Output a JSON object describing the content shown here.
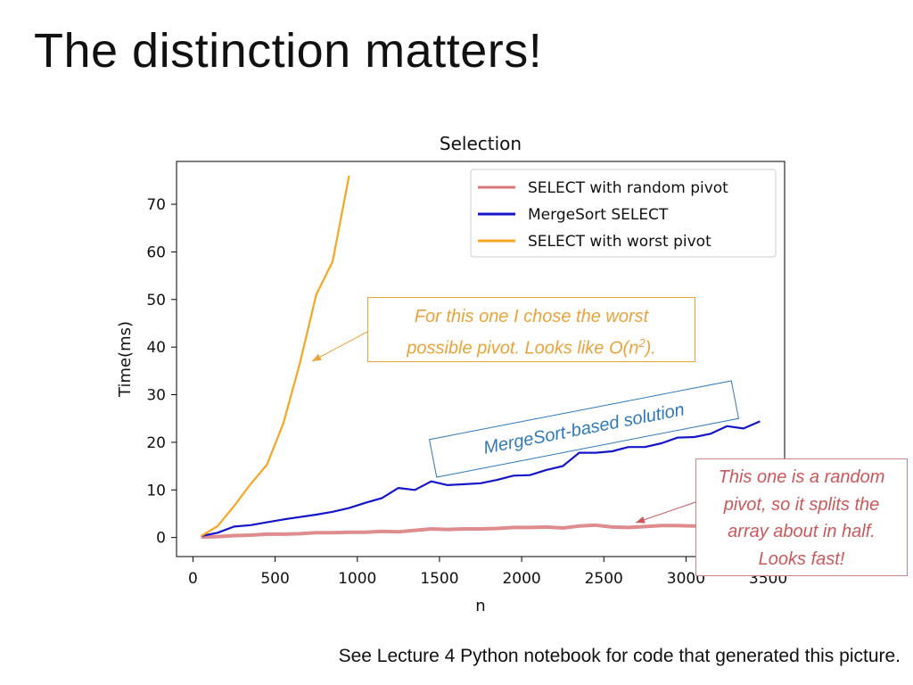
{
  "slide": {
    "title": "The distinction matters!",
    "footnote": "See Lecture 4 Python notebook for code that generated this picture."
  },
  "annotations": {
    "worst_line1": "For this one I chose the worst",
    "worst_line2_pre": "possible pivot.  Looks like O(n",
    "worst_line2_sup": "2",
    "worst_line2_post": ").",
    "merge": "MergeSort-based solution",
    "random_lines": [
      "This one is a random",
      "pivot, so it splits the",
      "array about in half.",
      "Looks fast!"
    ]
  },
  "colors": {
    "random": "#d9787a",
    "mergesort": "#1414c8",
    "worst": "#f5a623",
    "worst_note": "#e8a33b",
    "random_note": "#c9585a",
    "merge_note": "#2e78b8"
  },
  "chart_data": {
    "type": "line",
    "title": "Selection",
    "xlabel": "n",
    "ylabel": "Time(ms)",
    "xlim": [
      -100,
      3600
    ],
    "ylim": [
      -4,
      79
    ],
    "xticks": [
      0,
      500,
      1000,
      1500,
      2000,
      2500,
      3000,
      3500
    ],
    "yticks": [
      0,
      10,
      20,
      30,
      40,
      50,
      60,
      70
    ],
    "legend_position": "top-right",
    "series": [
      {
        "name": "SELECT with random pivot",
        "color": "#d9787a",
        "x": [
          50,
          150,
          250,
          350,
          450,
          550,
          650,
          750,
          850,
          950,
          1050,
          1150,
          1250,
          1350,
          1450,
          1550,
          1650,
          1750,
          1850,
          1950,
          2050,
          2150,
          2250,
          2350,
          2450,
          2550,
          2650,
          2750,
          2850,
          2950,
          3050,
          3150,
          3250,
          3350,
          3450
        ],
        "y": [
          0.1,
          0.2,
          0.4,
          0.5,
          0.7,
          0.7,
          0.8,
          1.0,
          1.0,
          1.1,
          1.1,
          1.3,
          1.2,
          1.5,
          1.8,
          1.7,
          1.8,
          1.8,
          1.9,
          2.1,
          2.1,
          2.2,
          2.0,
          2.4,
          2.6,
          2.2,
          2.1,
          2.3,
          2.5,
          2.5,
          2.4,
          2.5,
          2.4,
          2.6,
          2.5
        ]
      },
      {
        "name": "MergeSort SELECT",
        "color": "#1414c8",
        "x": [
          50,
          150,
          250,
          350,
          450,
          550,
          650,
          750,
          850,
          950,
          1050,
          1150,
          1250,
          1350,
          1450,
          1550,
          1650,
          1750,
          1850,
          1950,
          2050,
          2150,
          2250,
          2350,
          2450,
          2550,
          2650,
          2750,
          2850,
          2950,
          3050,
          3150,
          3250,
          3350,
          3450
        ],
        "y": [
          0.3,
          1.0,
          2.3,
          2.6,
          3.2,
          3.8,
          4.3,
          4.8,
          5.4,
          6.2,
          7.3,
          8.3,
          10.4,
          10.0,
          11.8,
          11.0,
          11.2,
          11.4,
          12.1,
          13.0,
          13.1,
          14.2,
          15.0,
          17.8,
          17.8,
          18.1,
          19.0,
          19.0,
          19.8,
          21.0,
          21.1,
          21.8,
          23.4,
          22.9,
          24.4
        ]
      },
      {
        "name": "SELECT with worst pivot",
        "color": "#f5a623",
        "x": [
          50,
          150,
          250,
          350,
          450,
          550,
          650,
          750,
          850,
          950
        ],
        "y": [
          0.3,
          2.4,
          6.6,
          11.2,
          15.3,
          24.0,
          36.5,
          51.0,
          58.0,
          76.0
        ]
      }
    ]
  }
}
